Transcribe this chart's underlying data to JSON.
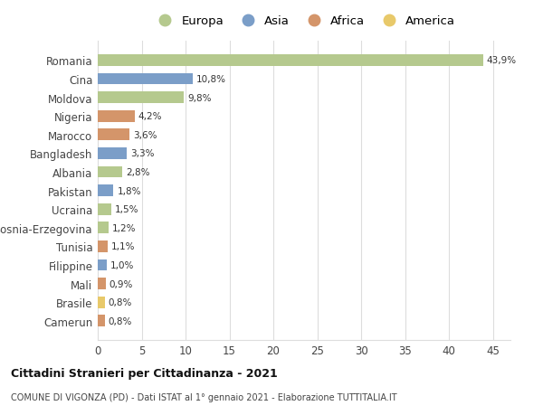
{
  "categories": [
    "Romania",
    "Cina",
    "Moldova",
    "Nigeria",
    "Marocco",
    "Bangladesh",
    "Albania",
    "Pakistan",
    "Ucraina",
    "Bosnia-Erzegovina",
    "Tunisia",
    "Filippine",
    "Mali",
    "Brasile",
    "Camerun"
  ],
  "values": [
    43.9,
    10.8,
    9.8,
    4.2,
    3.6,
    3.3,
    2.8,
    1.8,
    1.5,
    1.2,
    1.1,
    1.0,
    0.9,
    0.8,
    0.8
  ],
  "labels": [
    "43,9%",
    "10,8%",
    "9,8%",
    "4,2%",
    "3,6%",
    "3,3%",
    "2,8%",
    "1,8%",
    "1,5%",
    "1,2%",
    "1,1%",
    "1,0%",
    "0,9%",
    "0,8%",
    "0,8%"
  ],
  "continents": [
    "Europa",
    "Asia",
    "Europa",
    "Africa",
    "Africa",
    "Asia",
    "Europa",
    "Asia",
    "Europa",
    "Europa",
    "Africa",
    "Asia",
    "Africa",
    "America",
    "Africa"
  ],
  "colors": {
    "Europa": "#b5c98e",
    "Asia": "#7b9ec8",
    "Africa": "#d4956a",
    "America": "#e8c96a"
  },
  "legend_order": [
    "Europa",
    "Asia",
    "Africa",
    "America"
  ],
  "title1": "Cittadini Stranieri per Cittadinanza - 2021",
  "title2": "COMUNE DI VIGONZA (PD) - Dati ISTAT al 1° gennaio 2021 - Elaborazione TUTTITALIA.IT",
  "xlim": [
    0,
    47
  ],
  "xticks": [
    0,
    5,
    10,
    15,
    20,
    25,
    30,
    35,
    40,
    45
  ],
  "background_color": "#ffffff",
  "grid_color": "#dddddd"
}
